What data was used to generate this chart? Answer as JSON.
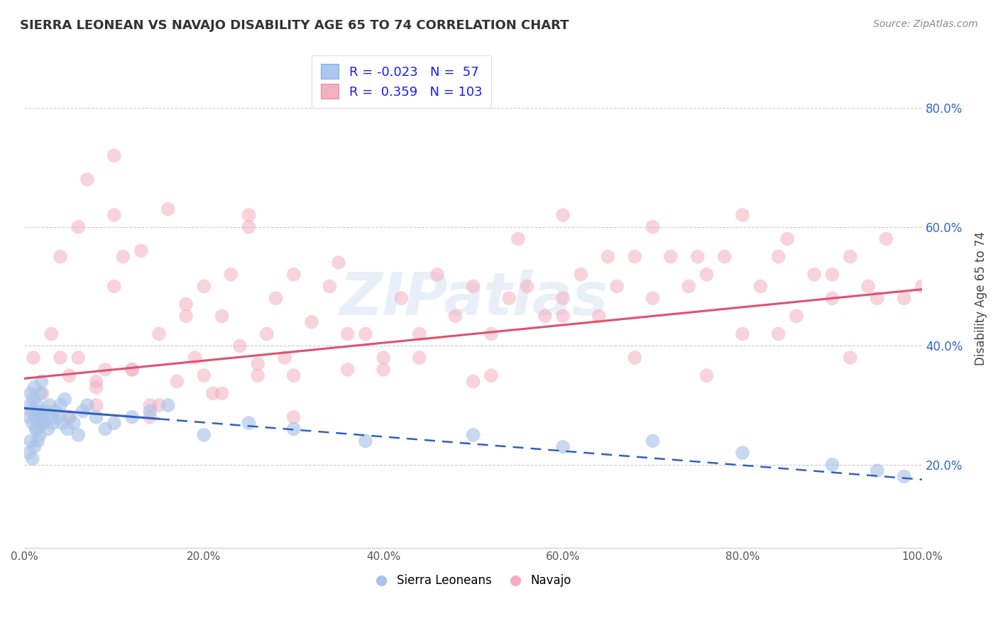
{
  "title": "SIERRA LEONEAN VS NAVAJO DISABILITY AGE 65 TO 74 CORRELATION CHART",
  "source": "Source: ZipAtlas.com",
  "ylabel": "Disability Age 65 to 74",
  "xlim": [
    0.0,
    1.0
  ],
  "ylim": [
    0.06,
    0.9
  ],
  "xticks": [
    0.0,
    0.2,
    0.4,
    0.6,
    0.8,
    1.0
  ],
  "xtick_labels": [
    "0.0%",
    "20.0%",
    "40.0%",
    "60.0%",
    "80.0%",
    "100.0%"
  ],
  "ytick_labels": [
    "20.0%",
    "40.0%",
    "60.0%",
    "80.0%"
  ],
  "yticks": [
    0.2,
    0.4,
    0.6,
    0.8
  ],
  "blue_fill_color": "#aac4e8",
  "pink_fill_color": "#f4afc0",
  "blue_line_color": "#3060c0",
  "pink_line_color": "#e05070",
  "legend_r_blue": "-0.023",
  "legend_n_blue": "57",
  "legend_r_pink": "0.359",
  "legend_n_pink": "103",
  "legend_label_blue": "Sierra Leoneans",
  "legend_label_pink": "Navajo",
  "watermark_text": "ZIPatlas",
  "background_color": "#ffffff",
  "blue_line_x_solid_end": 0.15,
  "blue_line_start_y": 0.295,
  "blue_line_end_y": 0.175,
  "pink_line_start_y": 0.345,
  "pink_line_end_y": 0.495,
  "blue_scatter_x": [
    0.005,
    0.006,
    0.007,
    0.008,
    0.009,
    0.01,
    0.011,
    0.012,
    0.013,
    0.014,
    0.015,
    0.016,
    0.017,
    0.018,
    0.019,
    0.02,
    0.022,
    0.024,
    0.026,
    0.028,
    0.03,
    0.032,
    0.035,
    0.038,
    0.04,
    0.042,
    0.045,
    0.048,
    0.05,
    0.055,
    0.06,
    0.065,
    0.07,
    0.08,
    0.09,
    0.1,
    0.12,
    0.14,
    0.16,
    0.2,
    0.25,
    0.3,
    0.38,
    0.5,
    0.6,
    0.7,
    0.8,
    0.9,
    0.95,
    0.98,
    0.005,
    0.007,
    0.009,
    0.011,
    0.013,
    0.015,
    0.018
  ],
  "blue_scatter_y": [
    0.28,
    0.3,
    0.32,
    0.29,
    0.27,
    0.31,
    0.33,
    0.28,
    0.26,
    0.3,
    0.29,
    0.27,
    0.25,
    0.32,
    0.34,
    0.28,
    0.27,
    0.29,
    0.26,
    0.3,
    0.28,
    0.27,
    0.29,
    0.28,
    0.3,
    0.27,
    0.31,
    0.26,
    0.28,
    0.27,
    0.25,
    0.29,
    0.3,
    0.28,
    0.26,
    0.27,
    0.28,
    0.29,
    0.3,
    0.25,
    0.27,
    0.26,
    0.24,
    0.25,
    0.23,
    0.24,
    0.22,
    0.2,
    0.19,
    0.18,
    0.22,
    0.24,
    0.21,
    0.23,
    0.26,
    0.24,
    0.28
  ],
  "pink_scatter_x": [
    0.01,
    0.02,
    0.03,
    0.04,
    0.05,
    0.06,
    0.07,
    0.08,
    0.09,
    0.1,
    0.11,
    0.12,
    0.13,
    0.14,
    0.15,
    0.16,
    0.17,
    0.18,
    0.19,
    0.2,
    0.21,
    0.22,
    0.23,
    0.24,
    0.25,
    0.26,
    0.27,
    0.28,
    0.29,
    0.3,
    0.32,
    0.34,
    0.36,
    0.38,
    0.4,
    0.42,
    0.44,
    0.46,
    0.48,
    0.5,
    0.52,
    0.54,
    0.56,
    0.58,
    0.6,
    0.62,
    0.64,
    0.66,
    0.68,
    0.7,
    0.72,
    0.74,
    0.76,
    0.78,
    0.8,
    0.82,
    0.84,
    0.86,
    0.88,
    0.9,
    0.92,
    0.94,
    0.96,
    0.98,
    1.0,
    0.05,
    0.08,
    0.1,
    0.12,
    0.15,
    0.2,
    0.25,
    0.3,
    0.35,
    0.4,
    0.5,
    0.55,
    0.6,
    0.65,
    0.7,
    0.75,
    0.8,
    0.85,
    0.9,
    0.95,
    0.02,
    0.04,
    0.06,
    0.08,
    0.1,
    0.14,
    0.18,
    0.22,
    0.26,
    0.3,
    0.36,
    0.44,
    0.52,
    0.6,
    0.68,
    0.76,
    0.84,
    0.92
  ],
  "pink_scatter_y": [
    0.38,
    0.32,
    0.42,
    0.38,
    0.35,
    0.6,
    0.68,
    0.33,
    0.36,
    0.72,
    0.55,
    0.36,
    0.56,
    0.3,
    0.42,
    0.63,
    0.34,
    0.45,
    0.38,
    0.5,
    0.32,
    0.45,
    0.52,
    0.4,
    0.6,
    0.37,
    0.42,
    0.48,
    0.38,
    0.52,
    0.44,
    0.5,
    0.36,
    0.42,
    0.38,
    0.48,
    0.42,
    0.52,
    0.45,
    0.5,
    0.42,
    0.48,
    0.5,
    0.45,
    0.48,
    0.52,
    0.45,
    0.5,
    0.55,
    0.48,
    0.55,
    0.5,
    0.52,
    0.55,
    0.42,
    0.5,
    0.55,
    0.45,
    0.52,
    0.48,
    0.55,
    0.5,
    0.58,
    0.48,
    0.5,
    0.28,
    0.3,
    0.62,
    0.36,
    0.3,
    0.35,
    0.62,
    0.35,
    0.54,
    0.36,
    0.34,
    0.58,
    0.62,
    0.55,
    0.6,
    0.55,
    0.62,
    0.58,
    0.52,
    0.48,
    0.27,
    0.55,
    0.38,
    0.34,
    0.5,
    0.28,
    0.47,
    0.32,
    0.35,
    0.28,
    0.42,
    0.38,
    0.35,
    0.45,
    0.38,
    0.35,
    0.42,
    0.38
  ]
}
